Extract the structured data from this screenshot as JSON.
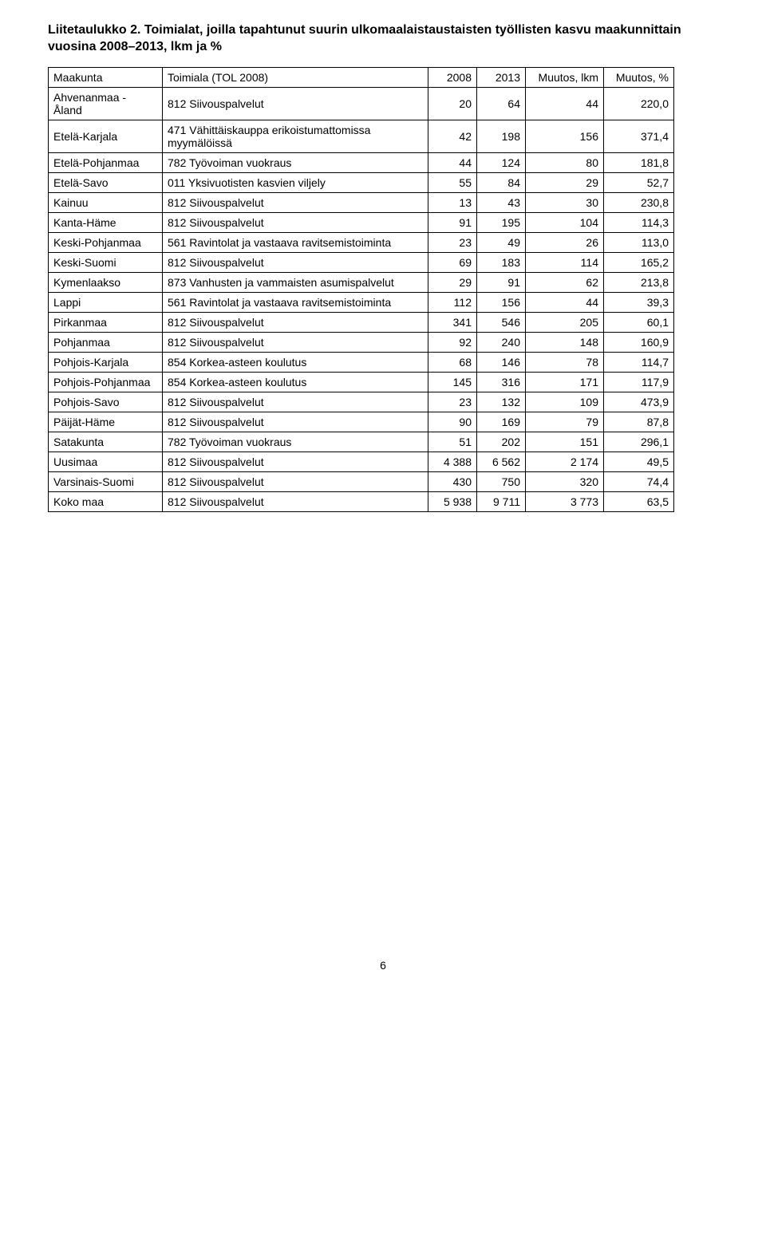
{
  "caption": "Liitetaulukko 2. Toimialat, joilla tapahtunut suurin ulkomaalaistaustaisten työllisten kasvu maakunnittain vuosina 2008–2013, lkm ja %",
  "headers": {
    "maakunta": "Maakunta",
    "toimiala": "Toimiala (TOL 2008)",
    "y2008": "2008",
    "y2013": "2013",
    "muutos_lkm": "Muutos, lkm",
    "muutos_pct": "Muutos, %"
  },
  "rows": [
    {
      "maakunta": "Ahvenanmaa - Åland",
      "toimiala": "812 Siivouspalvelut",
      "y2008": "20",
      "y2013": "64",
      "mlkm": "44",
      "mpct": "220,0"
    },
    {
      "maakunta": "Etelä-Karjala",
      "toimiala": "471 Vähittäiskauppa erikoistumattomissa myymälöissä",
      "y2008": "42",
      "y2013": "198",
      "mlkm": "156",
      "mpct": "371,4"
    },
    {
      "maakunta": "Etelä-Pohjanmaa",
      "toimiala": "782 Työvoiman vuokraus",
      "y2008": "44",
      "y2013": "124",
      "mlkm": "80",
      "mpct": "181,8"
    },
    {
      "maakunta": "Etelä-Savo",
      "toimiala": "011 Yksivuotisten kasvien viljely",
      "y2008": "55",
      "y2013": "84",
      "mlkm": "29",
      "mpct": "52,7"
    },
    {
      "maakunta": "Kainuu",
      "toimiala": "812 Siivouspalvelut",
      "y2008": "13",
      "y2013": "43",
      "mlkm": "30",
      "mpct": "230,8"
    },
    {
      "maakunta": "Kanta-Häme",
      "toimiala": "812 Siivouspalvelut",
      "y2008": "91",
      "y2013": "195",
      "mlkm": "104",
      "mpct": "114,3"
    },
    {
      "maakunta": "Keski-Pohjanmaa",
      "toimiala": "561 Ravintolat ja vastaava ravitsemistoiminta",
      "y2008": "23",
      "y2013": "49",
      "mlkm": "26",
      "mpct": "113,0"
    },
    {
      "maakunta": "Keski-Suomi",
      "toimiala": "812 Siivouspalvelut",
      "y2008": "69",
      "y2013": "183",
      "mlkm": "114",
      "mpct": "165,2"
    },
    {
      "maakunta": "Kymenlaakso",
      "toimiala": "873 Vanhusten ja vammaisten asumispalvelut",
      "y2008": "29",
      "y2013": "91",
      "mlkm": "62",
      "mpct": "213,8"
    },
    {
      "maakunta": "Lappi",
      "toimiala": "561 Ravintolat ja vastaava ravitsemistoiminta",
      "y2008": "112",
      "y2013": "156",
      "mlkm": "44",
      "mpct": "39,3"
    },
    {
      "maakunta": "Pirkanmaa",
      "toimiala": "812 Siivouspalvelut",
      "y2008": "341",
      "y2013": "546",
      "mlkm": "205",
      "mpct": "60,1"
    },
    {
      "maakunta": "Pohjanmaa",
      "toimiala": "812 Siivouspalvelut",
      "y2008": "92",
      "y2013": "240",
      "mlkm": "148",
      "mpct": "160,9"
    },
    {
      "maakunta": "Pohjois-Karjala",
      "toimiala": "854 Korkea-asteen koulutus",
      "y2008": "68",
      "y2013": "146",
      "mlkm": "78",
      "mpct": "114,7"
    },
    {
      "maakunta": "Pohjois-Pohjanmaa",
      "toimiala": "854 Korkea-asteen koulutus",
      "y2008": "145",
      "y2013": "316",
      "mlkm": "171",
      "mpct": "117,9"
    },
    {
      "maakunta": "Pohjois-Savo",
      "toimiala": "812 Siivouspalvelut",
      "y2008": "23",
      "y2013": "132",
      "mlkm": "109",
      "mpct": "473,9"
    },
    {
      "maakunta": "Päijät-Häme",
      "toimiala": "812 Siivouspalvelut",
      "y2008": "90",
      "y2013": "169",
      "mlkm": "79",
      "mpct": "87,8"
    },
    {
      "maakunta": "Satakunta",
      "toimiala": "782 Työvoiman vuokraus",
      "y2008": "51",
      "y2013": "202",
      "mlkm": "151",
      "mpct": "296,1"
    },
    {
      "maakunta": "Uusimaa",
      "toimiala": "812 Siivouspalvelut",
      "y2008": "4 388",
      "y2013": "6 562",
      "mlkm": "2 174",
      "mpct": "49,5"
    },
    {
      "maakunta": "Varsinais-Suomi",
      "toimiala": "812 Siivouspalvelut",
      "y2008": "430",
      "y2013": "750",
      "mlkm": "320",
      "mpct": "74,4"
    },
    {
      "maakunta": "Koko maa",
      "toimiala": "812 Siivouspalvelut",
      "y2008": "5 938",
      "y2013": "9 711",
      "mlkm": "3 773",
      "mpct": "63,5"
    }
  ],
  "page_number": "6",
  "style": {
    "font_family": "Arial",
    "caption_fontsize": 16,
    "caption_fontweight": "bold",
    "table_fontsize": 14,
    "border_color": "#000000",
    "background_color": "#ffffff",
    "text_color": "#000000"
  }
}
